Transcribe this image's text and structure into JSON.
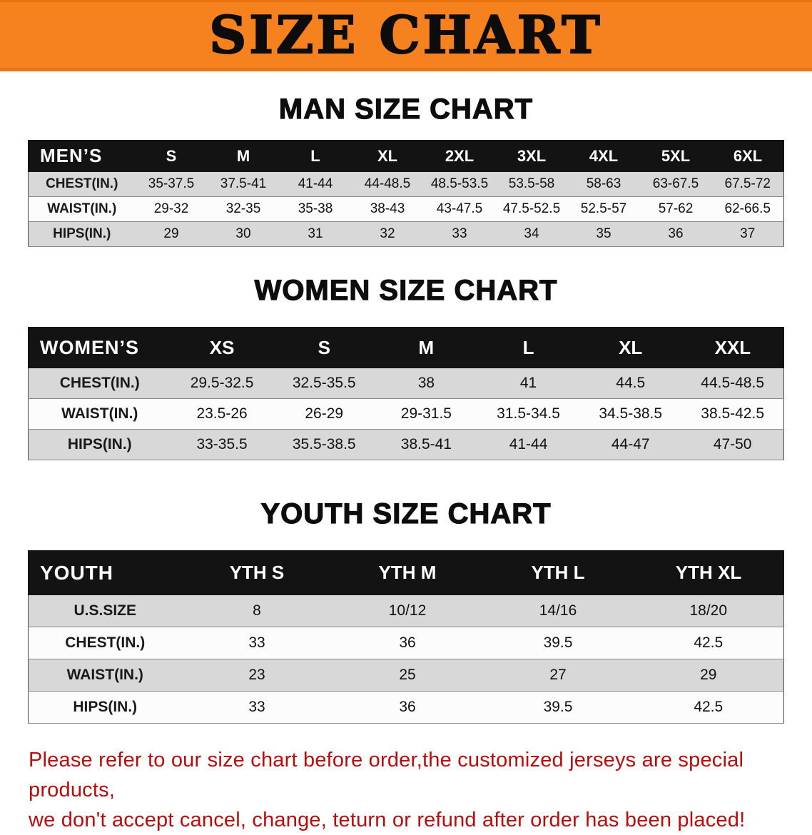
{
  "banner": {
    "title": "SIZE CHART",
    "bg_color": "#f6821f",
    "text_color": "#0c0c0c"
  },
  "colors": {
    "table_header_bg": "#131313",
    "table_header_text": "#ffffff",
    "row_shade": "#d8d8d8",
    "footer_text": "#bb0b0b"
  },
  "men": {
    "heading": "MAN SIZE CHART",
    "table": {
      "header": [
        "MEN’S",
        "S",
        "M",
        "L",
        "XL",
        "2XL",
        "3XL",
        "4XL",
        "5XL",
        "6XL"
      ],
      "rows": [
        {
          "label": "CHEST(IN.)",
          "values": [
            "35-37.5",
            "37.5-41",
            "41-44",
            "44-48.5",
            "48.5-53.5",
            "53.5-58",
            "58-63",
            "63-67.5",
            "67.5-72"
          ]
        },
        {
          "label": "WAIST(IN.)",
          "values": [
            "29-32",
            "32-35",
            "35-38",
            "38-43",
            "43-47.5",
            "47.5-52.5",
            "52.5-57",
            "57-62",
            "62-66.5"
          ]
        },
        {
          "label": "HIPS(IN.)",
          "values": [
            "29",
            "30",
            "31",
            "32",
            "33",
            "34",
            "35",
            "36",
            "37"
          ]
        }
      ]
    }
  },
  "women": {
    "heading": "WOMEN SIZE CHART",
    "table": {
      "header": [
        "WOMEN’S",
        "XS",
        "S",
        "M",
        "L",
        "XL",
        "XXL"
      ],
      "rows": [
        {
          "label": "CHEST(IN.)",
          "values": [
            "29.5-32.5",
            "32.5-35.5",
            "38",
            "41",
            "44.5",
            "44.5-48.5"
          ]
        },
        {
          "label": "WAIST(IN.)",
          "values": [
            "23.5-26",
            "26-29",
            "29-31.5",
            "31.5-34.5",
            "34.5-38.5",
            "38.5-42.5"
          ]
        },
        {
          "label": "HIPS(IN.)",
          "values": [
            "33-35.5",
            "35.5-38.5",
            "38.5-41",
            "41-44",
            "44-47",
            "47-50"
          ]
        }
      ]
    }
  },
  "youth": {
    "heading": "YOUTH SIZE CHART",
    "table": {
      "header": [
        "YOUTH",
        "YTH S",
        "YTH M",
        "YTH L",
        "YTH XL"
      ],
      "rows": [
        {
          "label": "U.S.SIZE",
          "values": [
            "8",
            "10/12",
            "14/16",
            "18/20"
          ]
        },
        {
          "label": "CHEST(IN.)",
          "values": [
            "33",
            "36",
            "39.5",
            "42.5"
          ]
        },
        {
          "label": "WAIST(IN.)",
          "values": [
            "23",
            "25",
            "27",
            "29"
          ]
        },
        {
          "label": "HIPS(IN.)",
          "values": [
            "33",
            "36",
            "39.5",
            "42.5"
          ]
        }
      ]
    }
  },
  "footer": {
    "line1": "Please refer to our size chart before order,the customized jerseys are special products,",
    "line2": "we don't accept cancel, change, teturn or refund after order has been placed!"
  }
}
